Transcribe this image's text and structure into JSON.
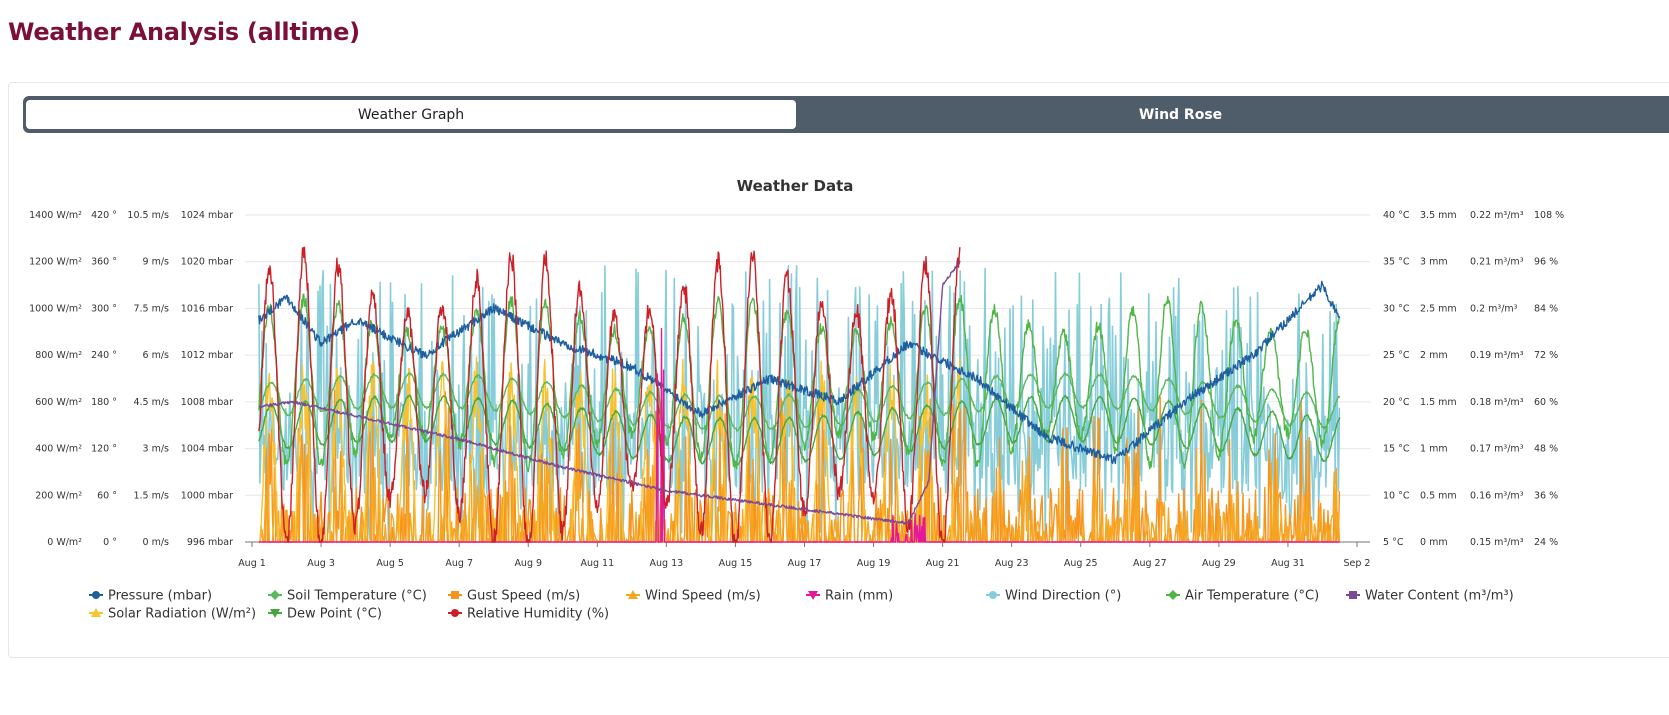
{
  "page": {
    "title": "Weather Analysis (alltime)"
  },
  "tabs": [
    {
      "label": "Weather Graph",
      "active": true
    },
    {
      "label": "Wind Rose",
      "active": false
    }
  ],
  "colors": {
    "title": "#7a1038",
    "tab_bar": "#4e5d69"
  },
  "chart_data": {
    "type": "line",
    "title": "Weather Data",
    "x_range": [
      "Aug 1",
      "Sep 2"
    ],
    "x_ticks": [
      "Aug 1",
      "Aug 3",
      "Aug 5",
      "Aug 7",
      "Aug 9",
      "Aug 11",
      "Aug 13",
      "Aug 15",
      "Aug 17",
      "Aug 19",
      "Aug 21",
      "Aug 23",
      "Aug 25",
      "Aug 27",
      "Aug 29",
      "Aug 31",
      "Sep 2"
    ],
    "grid": true,
    "legend_position": "bottom",
    "y_axes_left": [
      {
        "unit": "W/m²",
        "ticks": [
          "0 W/m²",
          "200 W/m²",
          "400 W/m²",
          "600 W/m²",
          "800 W/m²",
          "1000 W/m²",
          "1200 W/m²",
          "1400 W/m²"
        ],
        "ylim": [
          0,
          1400
        ]
      },
      {
        "unit": "°",
        "ticks": [
          "0 °",
          "60 °",
          "120 °",
          "180 °",
          "240 °",
          "300 °",
          "360 °",
          "420 °"
        ],
        "ylim": [
          0,
          420
        ]
      },
      {
        "unit": "m/s",
        "ticks": [
          "0 m/s",
          "1.5 m/s",
          "3 m/s",
          "4.5 m/s",
          "6 m/s",
          "7.5 m/s",
          "9 m/s",
          "10.5 m/s"
        ],
        "ylim": [
          0,
          10.5
        ]
      },
      {
        "unit": "mbar",
        "ticks": [
          "996 mbar",
          "1000 mbar",
          "1004 mbar",
          "1008 mbar",
          "1012 mbar",
          "1016 mbar",
          "1020 mbar",
          "1024 mbar"
        ],
        "ylim": [
          996,
          1024
        ]
      }
    ],
    "y_axes_right": [
      {
        "unit": "°C",
        "ticks": [
          "5 °C",
          "10 °C",
          "15 °C",
          "20 °C",
          "25 °C",
          "30 °C",
          "35 °C",
          "40 °C"
        ],
        "ylim": [
          5,
          40
        ]
      },
      {
        "unit": "mm",
        "ticks": [
          "0 mm",
          "0.5 mm",
          "1 mm",
          "1.5 mm",
          "2 mm",
          "2.5 mm",
          "3 mm",
          "3.5 mm"
        ],
        "ylim": [
          0,
          3.5
        ]
      },
      {
        "unit": "m³/m³",
        "ticks": [
          "0.15 m³/m³",
          "0.16 m³/m³",
          "0.17 m³/m³",
          "0.18 m³/m³",
          "0.19 m³/m³",
          "0.2 m³/m³",
          "0.21 m³/m³",
          "0.22 m³/m³"
        ],
        "ylim": [
          0.15,
          0.22
        ]
      },
      {
        "unit": "%",
        "ticks": [
          "24 %",
          "36 %",
          "48 %",
          "60 %",
          "72 %",
          "84 %",
          "96 %",
          "108 %"
        ],
        "ylim": [
          24,
          108
        ]
      }
    ],
    "series": [
      {
        "name": "Pressure (mbar)",
        "color": "#1f5fa0",
        "marker": "circle",
        "axis": "mbar",
        "pattern": "wander",
        "base": 1011,
        "amp": 6,
        "end_day": 31.5,
        "key_values": [
          [
            0.2,
            1015
          ],
          [
            1,
            1017
          ],
          [
            2,
            1013
          ],
          [
            3,
            1015
          ],
          [
            5,
            1012
          ],
          [
            7,
            1016
          ],
          [
            9,
            1013
          ],
          [
            11,
            1011
          ],
          [
            13,
            1007
          ],
          [
            15,
            1010
          ],
          [
            17,
            1008
          ],
          [
            19,
            1013
          ],
          [
            21,
            1010
          ],
          [
            23,
            1005
          ],
          [
            25,
            1003
          ],
          [
            27,
            1008
          ],
          [
            29,
            1012
          ],
          [
            31,
            1018
          ],
          [
            31.5,
            1015
          ]
        ]
      },
      {
        "name": "Soil Temperature (°C)",
        "color": "#5cb85c",
        "marker": "diamond",
        "axis": "°C",
        "pattern": "wave",
        "base": 20,
        "amp": 3,
        "end_day": 31.5
      },
      {
        "name": "Gust Speed (m/s)",
        "color": "#f7941d",
        "marker": "square",
        "axis": "m/s",
        "pattern": "spiky",
        "base": 0,
        "amp": 2.5,
        "end_day": 31.5
      },
      {
        "name": "Wind Speed (m/s)",
        "color": "#f5a623",
        "marker": "triangle",
        "axis": "m/s",
        "pattern": "spiky",
        "base": 0,
        "amp": 1.5,
        "end_day": 31.5
      },
      {
        "name": "Rain (mm)",
        "color": "#e5189a",
        "marker": "triangle-down",
        "axis": "mm",
        "pattern": "rain",
        "base": 0,
        "amp": 0.2,
        "end_day": 31.5
      },
      {
        "name": "Wind Direction (°)",
        "color": "#86cdd9",
        "marker": "circle",
        "axis": "°",
        "pattern": "noisy",
        "base": 180,
        "amp": 180,
        "end_day": 31.5
      },
      {
        "name": "Air Temperature (°C)",
        "color": "#4fb648",
        "marker": "diamond",
        "axis": "°C",
        "pattern": "diurnal",
        "base": 22,
        "amp": 9,
        "end_day": 31.5
      },
      {
        "name": "Water Content (m³/m³)",
        "color": "#7d4a94",
        "marker": "square",
        "axis": "m³/m³",
        "pattern": "decline",
        "base": 0.19,
        "amp": 0,
        "end_day": 20.5,
        "key_values": [
          [
            0.2,
            0.179
          ],
          [
            1.2,
            0.18
          ],
          [
            3,
            0.177
          ],
          [
            6,
            0.172
          ],
          [
            9,
            0.166
          ],
          [
            12,
            0.161
          ],
          [
            15,
            0.158
          ],
          [
            18,
            0.155
          ],
          [
            19,
            0.154
          ],
          [
            19.6,
            0.163
          ],
          [
            20,
            0.205
          ],
          [
            20.5,
            0.21
          ]
        ]
      },
      {
        "name": "Solar Radiation (W/m²)",
        "color": "#f7c22d",
        "marker": "triangle",
        "axis": "W/m²",
        "pattern": "solar",
        "base": 0,
        "amp": 800,
        "end_day": 20.5
      },
      {
        "name": "Dew Point (°C)",
        "color": "#44a83f",
        "marker": "triangle-down",
        "axis": "°C",
        "pattern": "wave",
        "base": 17,
        "amp": 4,
        "end_day": 31.5
      },
      {
        "name": "Relative Humidity (%)",
        "color": "#cc1f27",
        "marker": "circle",
        "axis": "%",
        "pattern": "diurnal",
        "base": 60,
        "amp": 38,
        "end_day": 20.5
      }
    ]
  }
}
